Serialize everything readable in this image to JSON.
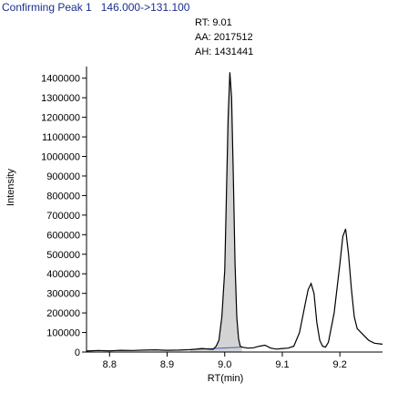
{
  "title": "Confirming Peak 1   146.000->131.100",
  "chart_data": {
    "type": "line",
    "title": "Confirming Peak 1   146.000->131.100",
    "xlabel": "RT(min)",
    "ylabel": "Intensity",
    "xlim": [
      8.76,
      9.274
    ],
    "ylim": [
      0,
      1450000
    ],
    "x_ticks": [
      8.8,
      8.9,
      9.0,
      9.1,
      9.2
    ],
    "x_tick_labels": [
      "8.8",
      "8.9",
      "9.0",
      "9.1",
      "9.2"
    ],
    "y_ticks": [
      0,
      100000,
      200000,
      300000,
      400000,
      500000,
      600000,
      700000,
      800000,
      900000,
      1000000,
      1100000,
      1200000,
      1300000,
      1400000
    ],
    "y_tick_labels": [
      "0",
      "100000",
      "200000",
      "300000",
      "400000",
      "500000",
      "600000",
      "700000",
      "800000",
      "900000",
      "1000000",
      "1100000",
      "1200000",
      "1300000",
      "1400000"
    ],
    "series": [
      {
        "x": [
          8.76,
          8.78,
          8.8,
          8.82,
          8.84,
          8.86,
          8.88,
          8.9,
          8.92,
          8.94,
          8.95,
          8.96,
          8.97,
          8.98,
          8.985,
          8.99,
          8.995,
          9.0,
          9.003,
          9.006,
          9.009,
          9.012,
          9.015,
          9.018,
          9.021,
          9.024,
          9.027,
          9.03,
          9.04,
          9.05,
          9.06,
          9.07,
          9.08,
          9.09,
          9.1,
          9.11,
          9.12,
          9.13,
          9.14,
          9.145,
          9.15,
          9.155,
          9.16,
          9.165,
          9.17,
          9.175,
          9.18,
          9.19,
          9.2,
          9.205,
          9.21,
          9.215,
          9.22,
          9.225,
          9.23,
          9.24,
          9.25,
          9.26,
          9.274
        ],
        "y": [
          5000,
          8000,
          6000,
          9000,
          8000,
          10000,
          11000,
          9000,
          10000,
          12000,
          15000,
          18000,
          16000,
          14000,
          30000,
          60000,
          180000,
          420000,
          800000,
          1200000,
          1430000,
          1300000,
          900000,
          450000,
          180000,
          70000,
          30000,
          25000,
          20000,
          22000,
          30000,
          35000,
          20000,
          15000,
          18000,
          20000,
          30000,
          100000,
          250000,
          320000,
          350000,
          300000,
          150000,
          60000,
          30000,
          25000,
          50000,
          200000,
          450000,
          590000,
          630000,
          500000,
          320000,
          180000,
          120000,
          90000,
          60000,
          45000,
          40000
        ]
      }
    ],
    "filled_peak_x_range": [
      8.94,
      9.03
    ],
    "annotations": [
      "RT: 9.01",
      "AA: 2017512",
      "AH: 1431441"
    ]
  },
  "colors": {
    "trace": "#000000",
    "fill": "#d3d3d3",
    "title": "#1a2e8a",
    "baseline": "#4a5ab8"
  }
}
